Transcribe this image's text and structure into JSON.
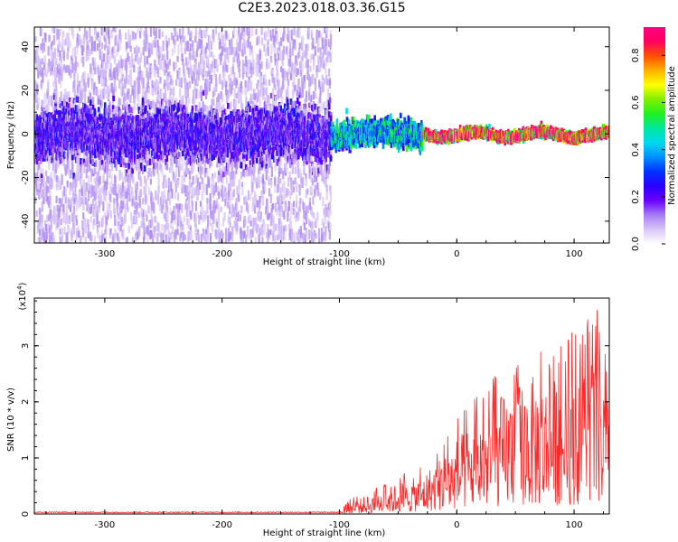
{
  "title": "C2E3.2023.018.03.36.G15",
  "chart_data": [
    {
      "type": "heatmap",
      "title": "C2E3.2023.018.03.36.G15",
      "xlabel": "Height of straight line (km)",
      "ylabel": "Frequency (Hz)",
      "xlim": [
        -360,
        130
      ],
      "ylim": [
        -50,
        49
      ],
      "xticks": [
        -300,
        -200,
        -100,
        0,
        100
      ],
      "yticks": [
        -40,
        -20,
        0,
        20,
        40
      ],
      "grid": false,
      "colorbar": {
        "label": "Normalized spectral amplitude",
        "range": [
          0.0,
          0.92
        ],
        "ticks": [
          0.0,
          0.2,
          0.4,
          0.6,
          0.8
        ],
        "colors": [
          "#ffffff",
          "#d8c6f8",
          "#a57cf4",
          "#6a00ff",
          "#2a00ff",
          "#0030ff",
          "#0090ff",
          "#00d8f0",
          "#00e8a0",
          "#20f020",
          "#80f000",
          "#ffff00",
          "#ffb000",
          "#ff5000",
          "#ff0060",
          "#ff0080"
        ]
      },
      "features": [
        {
          "segment": "below -108 km",
          "x": [
            -360,
            -108
          ],
          "center_hz": 0,
          "core_halfwidth_hz": 6,
          "core_amplitude": 0.22,
          "scatter_halfwidth_hz": 49,
          "scatter_amplitude": 0.08
        },
        {
          "segment": "-108 to -30 km",
          "x": [
            -108,
            -30
          ],
          "center_hz": 0,
          "core_halfwidth_hz": 3,
          "core_amplitude": 0.45
        },
        {
          "segment": "-30 to 130 km",
          "x": [
            -30,
            130
          ],
          "center_hz": 0,
          "core_halfwidth_hz": 1,
          "core_amplitude": 0.9
        }
      ]
    },
    {
      "type": "line",
      "xlabel": "Height of straight line (km)",
      "ylabel": "SNR (10 * v/v)",
      "y_scale_label": "(x10",
      "y_scale_exponent": "4",
      "y_unit": "x10^4",
      "xlim": [
        -360,
        130
      ],
      "ylim": [
        0,
        3.85
      ],
      "xticks": [
        -300,
        -200,
        -100,
        0,
        100
      ],
      "yticks": [
        0,
        1,
        2,
        3
      ],
      "grid": false,
      "series": [
        {
          "color": "#ff0000",
          "envelope": [
            {
              "x": -360,
              "y": 0.03
            },
            {
              "x": -120,
              "y": 0.04
            },
            {
              "x": -100,
              "y": 0.05
            },
            {
              "x": -90,
              "y": 0.3
            },
            {
              "x": -70,
              "y": 0.45
            },
            {
              "x": -50,
              "y": 0.7
            },
            {
              "x": -30,
              "y": 0.85
            },
            {
              "x": -10,
              "y": 1.4
            },
            {
              "x": 0,
              "y": 1.7
            },
            {
              "x": 20,
              "y": 2.2
            },
            {
              "x": 40,
              "y": 2.7
            },
            {
              "x": 60,
              "y": 3.1
            },
            {
              "x": 80,
              "y": 3.0
            },
            {
              "x": 100,
              "y": 3.3
            },
            {
              "x": 120,
              "y": 3.7
            },
            {
              "x": 130,
              "y": 2.5
            }
          ]
        }
      ]
    }
  ]
}
